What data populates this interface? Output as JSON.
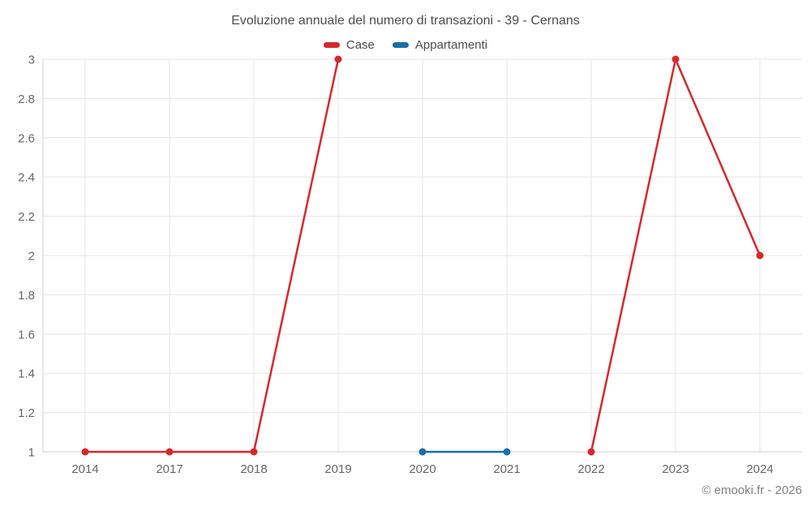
{
  "chart_data": {
    "type": "line",
    "title": "Evoluzione annuale del numero di transazioni - 39 - Cernans",
    "categories": [
      "2014",
      "2017",
      "2018",
      "2019",
      "2020",
      "2021",
      "2022",
      "2023",
      "2024"
    ],
    "series": [
      {
        "name": "Case",
        "color": "#d7282c",
        "values": [
          1,
          1,
          1,
          3,
          null,
          null,
          1,
          3,
          2
        ]
      },
      {
        "name": "Appartamenti",
        "color": "#1c6ea4",
        "values": [
          null,
          null,
          null,
          null,
          1,
          1,
          null,
          null,
          null
        ]
      }
    ],
    "xlabel": "",
    "ylabel": "",
    "ylim": [
      1,
      3
    ],
    "ytick_step": 0.2,
    "ytick_labels": [
      "1",
      "1.2",
      "1.4",
      "1.6",
      "1.8",
      "2",
      "2.2",
      "2.4",
      "2.6",
      "2.8",
      "3"
    ],
    "grid": true,
    "legend_position": "top",
    "marker_radius": 4.5,
    "line_width": 2.5
  },
  "credit": "© emooki.fr - 2026",
  "colors": {
    "grid": "#e5e5e5",
    "axis": "#cfcfcf",
    "tick_text": "#666666",
    "title_text": "#4d4d4d",
    "credit_text": "#808080",
    "background": "#ffffff"
  }
}
